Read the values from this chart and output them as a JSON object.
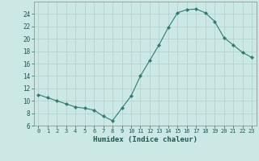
{
  "x": [
    0,
    1,
    2,
    3,
    4,
    5,
    6,
    7,
    8,
    9,
    10,
    11,
    12,
    13,
    14,
    15,
    16,
    17,
    18,
    19,
    20,
    21,
    22,
    23
  ],
  "y": [
    11.0,
    10.5,
    10.0,
    9.5,
    9.0,
    8.8,
    8.5,
    7.5,
    6.8,
    8.8,
    10.8,
    14.0,
    16.5,
    19.0,
    21.8,
    24.2,
    24.7,
    24.8,
    24.2,
    22.8,
    20.2,
    19.0,
    17.8,
    17.0
  ],
  "xlabel": "Humidex (Indice chaleur)",
  "ylim": [
    6,
    26
  ],
  "xlim": [
    -0.5,
    23.5
  ],
  "yticks": [
    6,
    8,
    10,
    12,
    14,
    16,
    18,
    20,
    22,
    24
  ],
  "xticks": [
    0,
    1,
    2,
    3,
    4,
    5,
    6,
    7,
    8,
    9,
    10,
    11,
    12,
    13,
    14,
    15,
    16,
    17,
    18,
    19,
    20,
    21,
    22,
    23
  ],
  "line_color": "#2e7d6e",
  "marker": "D",
  "marker_size": 2.0,
  "bg_color": "#cce8e4",
  "grid_color": "#b0d0cc",
  "spine_color": "#888888"
}
